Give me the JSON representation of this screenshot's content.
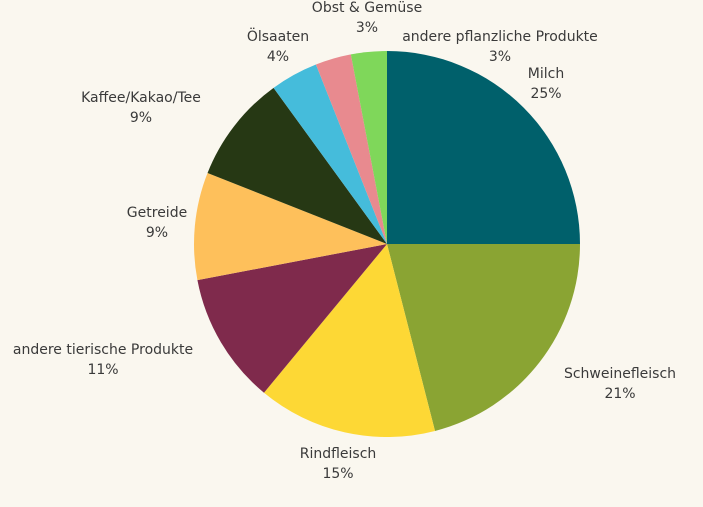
{
  "chart_data": {
    "type": "pie",
    "title": "",
    "start_angle_deg": 0,
    "direction": "clockwise",
    "slices": [
      {
        "label": "Milch",
        "value": 25,
        "value_label": "25%",
        "color": "#00606b"
      },
      {
        "label": "Schweinefleisch",
        "value": 21,
        "value_label": "21%",
        "color": "#8aa433"
      },
      {
        "label": "Rindfleisch",
        "value": 15,
        "value_label": "15%",
        "color": "#fdd835"
      },
      {
        "label": "andere tierische Produkte",
        "value": 11,
        "value_label": "11%",
        "color": "#7f2a4c"
      },
      {
        "label": "Getreide",
        "value": 9,
        "value_label": "9%",
        "color": "#fec05b"
      },
      {
        "label": "Kaffee/Kakao/Tee",
        "value": 9,
        "value_label": "9%",
        "color": "#263814"
      },
      {
        "label": "Ölsaaten",
        "value": 4,
        "value_label": "4%",
        "color": "#45bcdb"
      },
      {
        "label": "Obst & Gemüse",
        "value": 3,
        "value_label": "3%",
        "color": "#e88a8f"
      },
      {
        "label": "andere pflanzliche Produkte",
        "value": 3,
        "value_label": "3%",
        "color": "#7fd75a"
      }
    ]
  }
}
